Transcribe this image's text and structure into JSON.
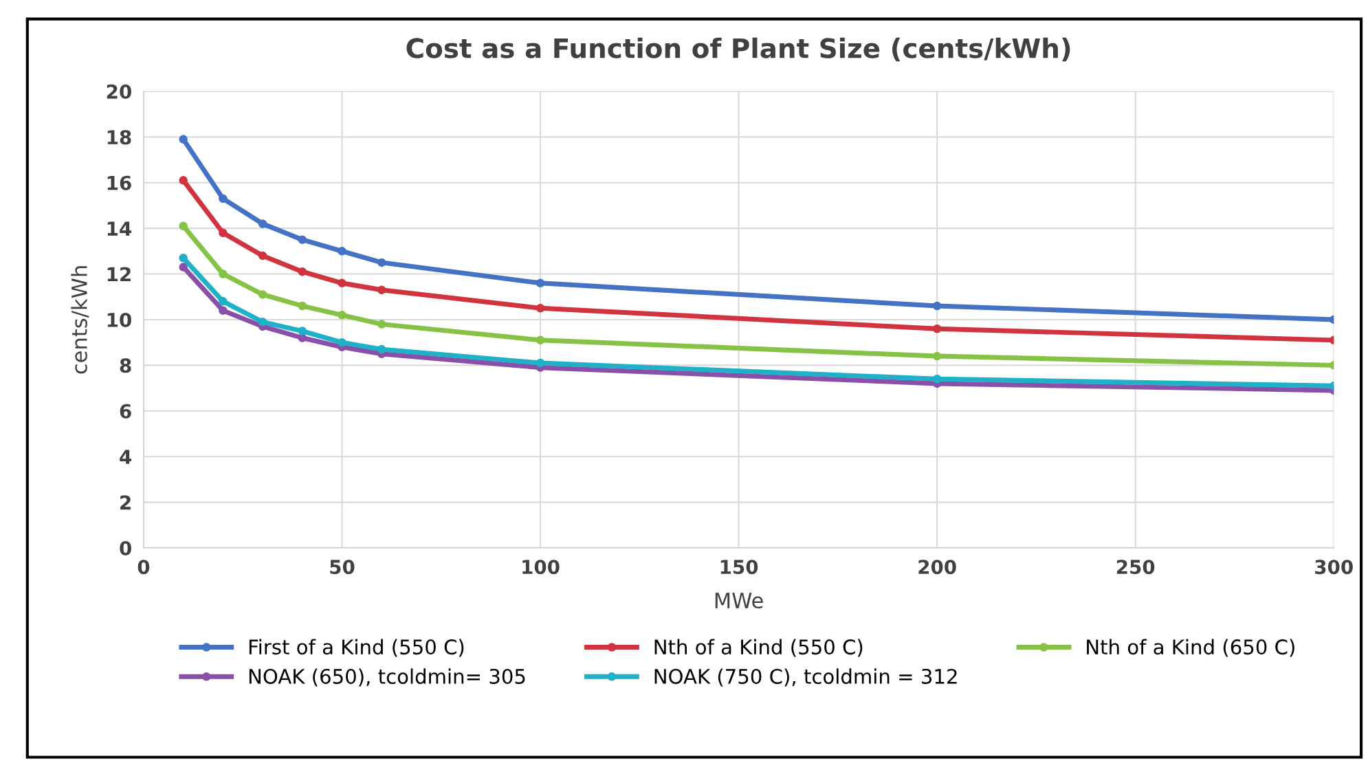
{
  "chart_data": {
    "type": "line",
    "title": "Cost as a Function of Plant Size (cents/kWh)",
    "xlabel": "MWe",
    "ylabel": "cents/kWh",
    "x": [
      10,
      20,
      30,
      40,
      50,
      60,
      100,
      200,
      300
    ],
    "series": [
      {
        "name": "First of a Kind (550 C)",
        "color": "#4472c4",
        "values": [
          17.9,
          15.3,
          14.2,
          13.5,
          13.0,
          12.5,
          11.6,
          10.6,
          10.0
        ]
      },
      {
        "name": "Nth of a Kind (550 C)",
        "color": "#d2343f",
        "values": [
          16.1,
          13.8,
          12.8,
          12.1,
          11.6,
          11.3,
          10.5,
          9.6,
          9.1
        ]
      },
      {
        "name": "Nth of a Kind (650 C)",
        "color": "#86c246",
        "values": [
          14.1,
          12.0,
          11.1,
          10.6,
          10.2,
          9.8,
          9.1,
          8.4,
          8.0
        ]
      },
      {
        "name": "NOAK (650), tcoldmin= 305",
        "color": "#8a4fa8",
        "values": [
          12.3,
          10.4,
          9.7,
          9.2,
          8.8,
          8.5,
          7.9,
          7.2,
          6.9
        ]
      },
      {
        "name": "NOAK (750 C), tcoldmin = 312",
        "color": "#1eb1c8",
        "values": [
          12.7,
          10.8,
          9.9,
          9.5,
          9.0,
          8.7,
          8.1,
          7.4,
          7.1
        ]
      }
    ],
    "xlim": [
      0,
      300
    ],
    "xticks": [
      0,
      50,
      100,
      150,
      200,
      250,
      300
    ],
    "ylim": [
      0,
      20
    ],
    "yticks": [
      0,
      2,
      4,
      6,
      8,
      10,
      12,
      14,
      16,
      18,
      20
    ],
    "grid": true,
    "legend": "bottom",
    "marker": "circle",
    "line_style": "solid"
  }
}
